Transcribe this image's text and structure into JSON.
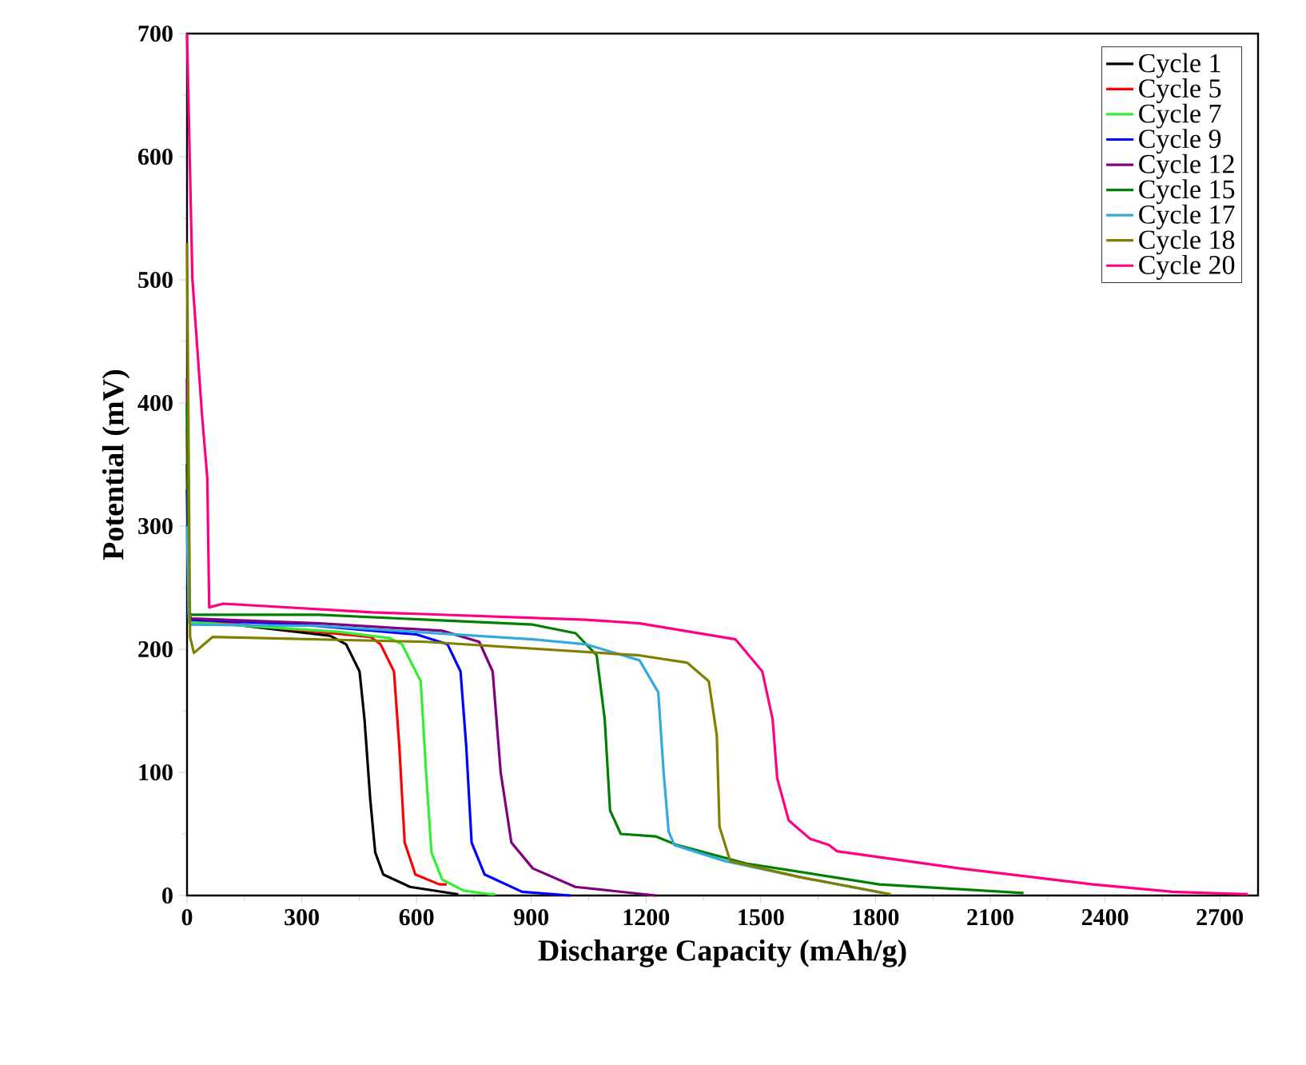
{
  "chart_data": {
    "type": "line",
    "xlabel": "Discharge Capacity (mAh/g)",
    "ylabel": "Potential (mV)",
    "xlim": [
      0,
      2800
    ],
    "ylim": [
      0,
      700
    ],
    "xticks": [
      0,
      300,
      600,
      900,
      1200,
      1500,
      1800,
      2100,
      2400,
      2700
    ],
    "yticks": [
      0,
      100,
      200,
      300,
      400,
      500,
      600,
      700
    ],
    "legend": "top right",
    "series": [
      {
        "name": "Cycle 1",
        "color": "#000000",
        "x": [
          0,
          5,
          11,
          374,
          416,
          451,
          464,
          479,
          492,
          513,
          583,
          709
        ],
        "values": [
          350,
          228,
          224,
          211,
          204,
          182,
          143,
          78,
          35,
          17,
          7,
          1
        ]
      },
      {
        "name": "Cycle 5",
        "color": "#ff0000",
        "x": [
          0,
          5,
          11,
          400,
          480,
          506,
          541,
          555,
          569,
          597,
          660,
          679
        ],
        "values": [
          380,
          228,
          224,
          null,
          210,
          204,
          182,
          121,
          43,
          17,
          9,
          9
        ]
      },
      {
        "name": "Cycle 7",
        "color": "#33ee33",
        "x": [
          0,
          5,
          11,
          400,
          530,
          562,
          611,
          625,
          639,
          667,
          723,
          792,
          806
        ],
        "values": [
          400,
          228,
          222,
          214,
          209,
          204,
          174,
          100,
          35,
          13,
          4,
          1,
          1
        ]
      },
      {
        "name": "Cycle 9",
        "color": "#0000ff",
        "x": [
          0,
          5,
          11,
          300,
          600,
          681,
          715,
          730,
          744,
          778,
          876,
          1002
        ],
        "values": [
          330,
          226,
          224,
          220,
          212,
          204,
          182,
          121,
          43,
          17,
          3,
          0
        ]
      },
      {
        "name": "Cycle 12",
        "color": "#800080",
        "x": [
          0,
          5,
          11,
          346,
          667,
          764,
          799,
          820,
          848,
          904,
          1015,
          1225
        ],
        "values": [
          420,
          228,
          225,
          221,
          215,
          206,
          182,
          100,
          43,
          22,
          7,
          0
        ]
      },
      {
        "name": "Cycle 15",
        "color": "#008000",
        "x": [
          0,
          5,
          11,
          346,
          904,
          1016,
          1071,
          1092,
          1106,
          1134,
          1225,
          1281,
          1462,
          1810,
          2187
        ],
        "values": [
          400,
          230,
          228,
          228,
          220,
          213,
          195,
          143,
          69,
          50,
          48,
          41,
          26,
          9,
          2
        ]
      },
      {
        "name": "Cycle 17",
        "color": "#33aadd",
        "x": [
          0,
          5,
          11,
          346,
          904,
          1043,
          1183,
          1232,
          1246,
          1259,
          1274,
          1406,
          1601,
          1820
        ],
        "values": [
          300,
          222,
          220,
          219,
          208,
          204,
          191,
          165,
          100,
          52,
          41,
          28,
          15,
          2
        ]
      },
      {
        "name": "Cycle 18",
        "color": "#808000",
        "x": [
          0,
          8,
          18,
          67,
          625,
          1183,
          1308,
          1364,
          1385,
          1392,
          1420,
          1601,
          1840
        ],
        "values": [
          530,
          210,
          197,
          210,
          206,
          195,
          189,
          174,
          130,
          56,
          28,
          15,
          1
        ]
      },
      {
        "name": "Cycle 20",
        "color": "#ff0080",
        "x": [
          0,
          14,
          39,
          53,
          58,
          95,
          484,
          1043,
          1183,
          1434,
          1504,
          1531,
          1543,
          1573,
          1629,
          1678,
          1699,
          2020,
          2368,
          2577,
          2773
        ],
        "values": [
          700,
          501,
          391,
          339,
          234,
          237,
          230,
          224,
          221,
          208,
          182,
          143,
          95,
          61,
          46,
          41,
          36,
          22,
          9,
          3,
          1
        ]
      }
    ]
  }
}
